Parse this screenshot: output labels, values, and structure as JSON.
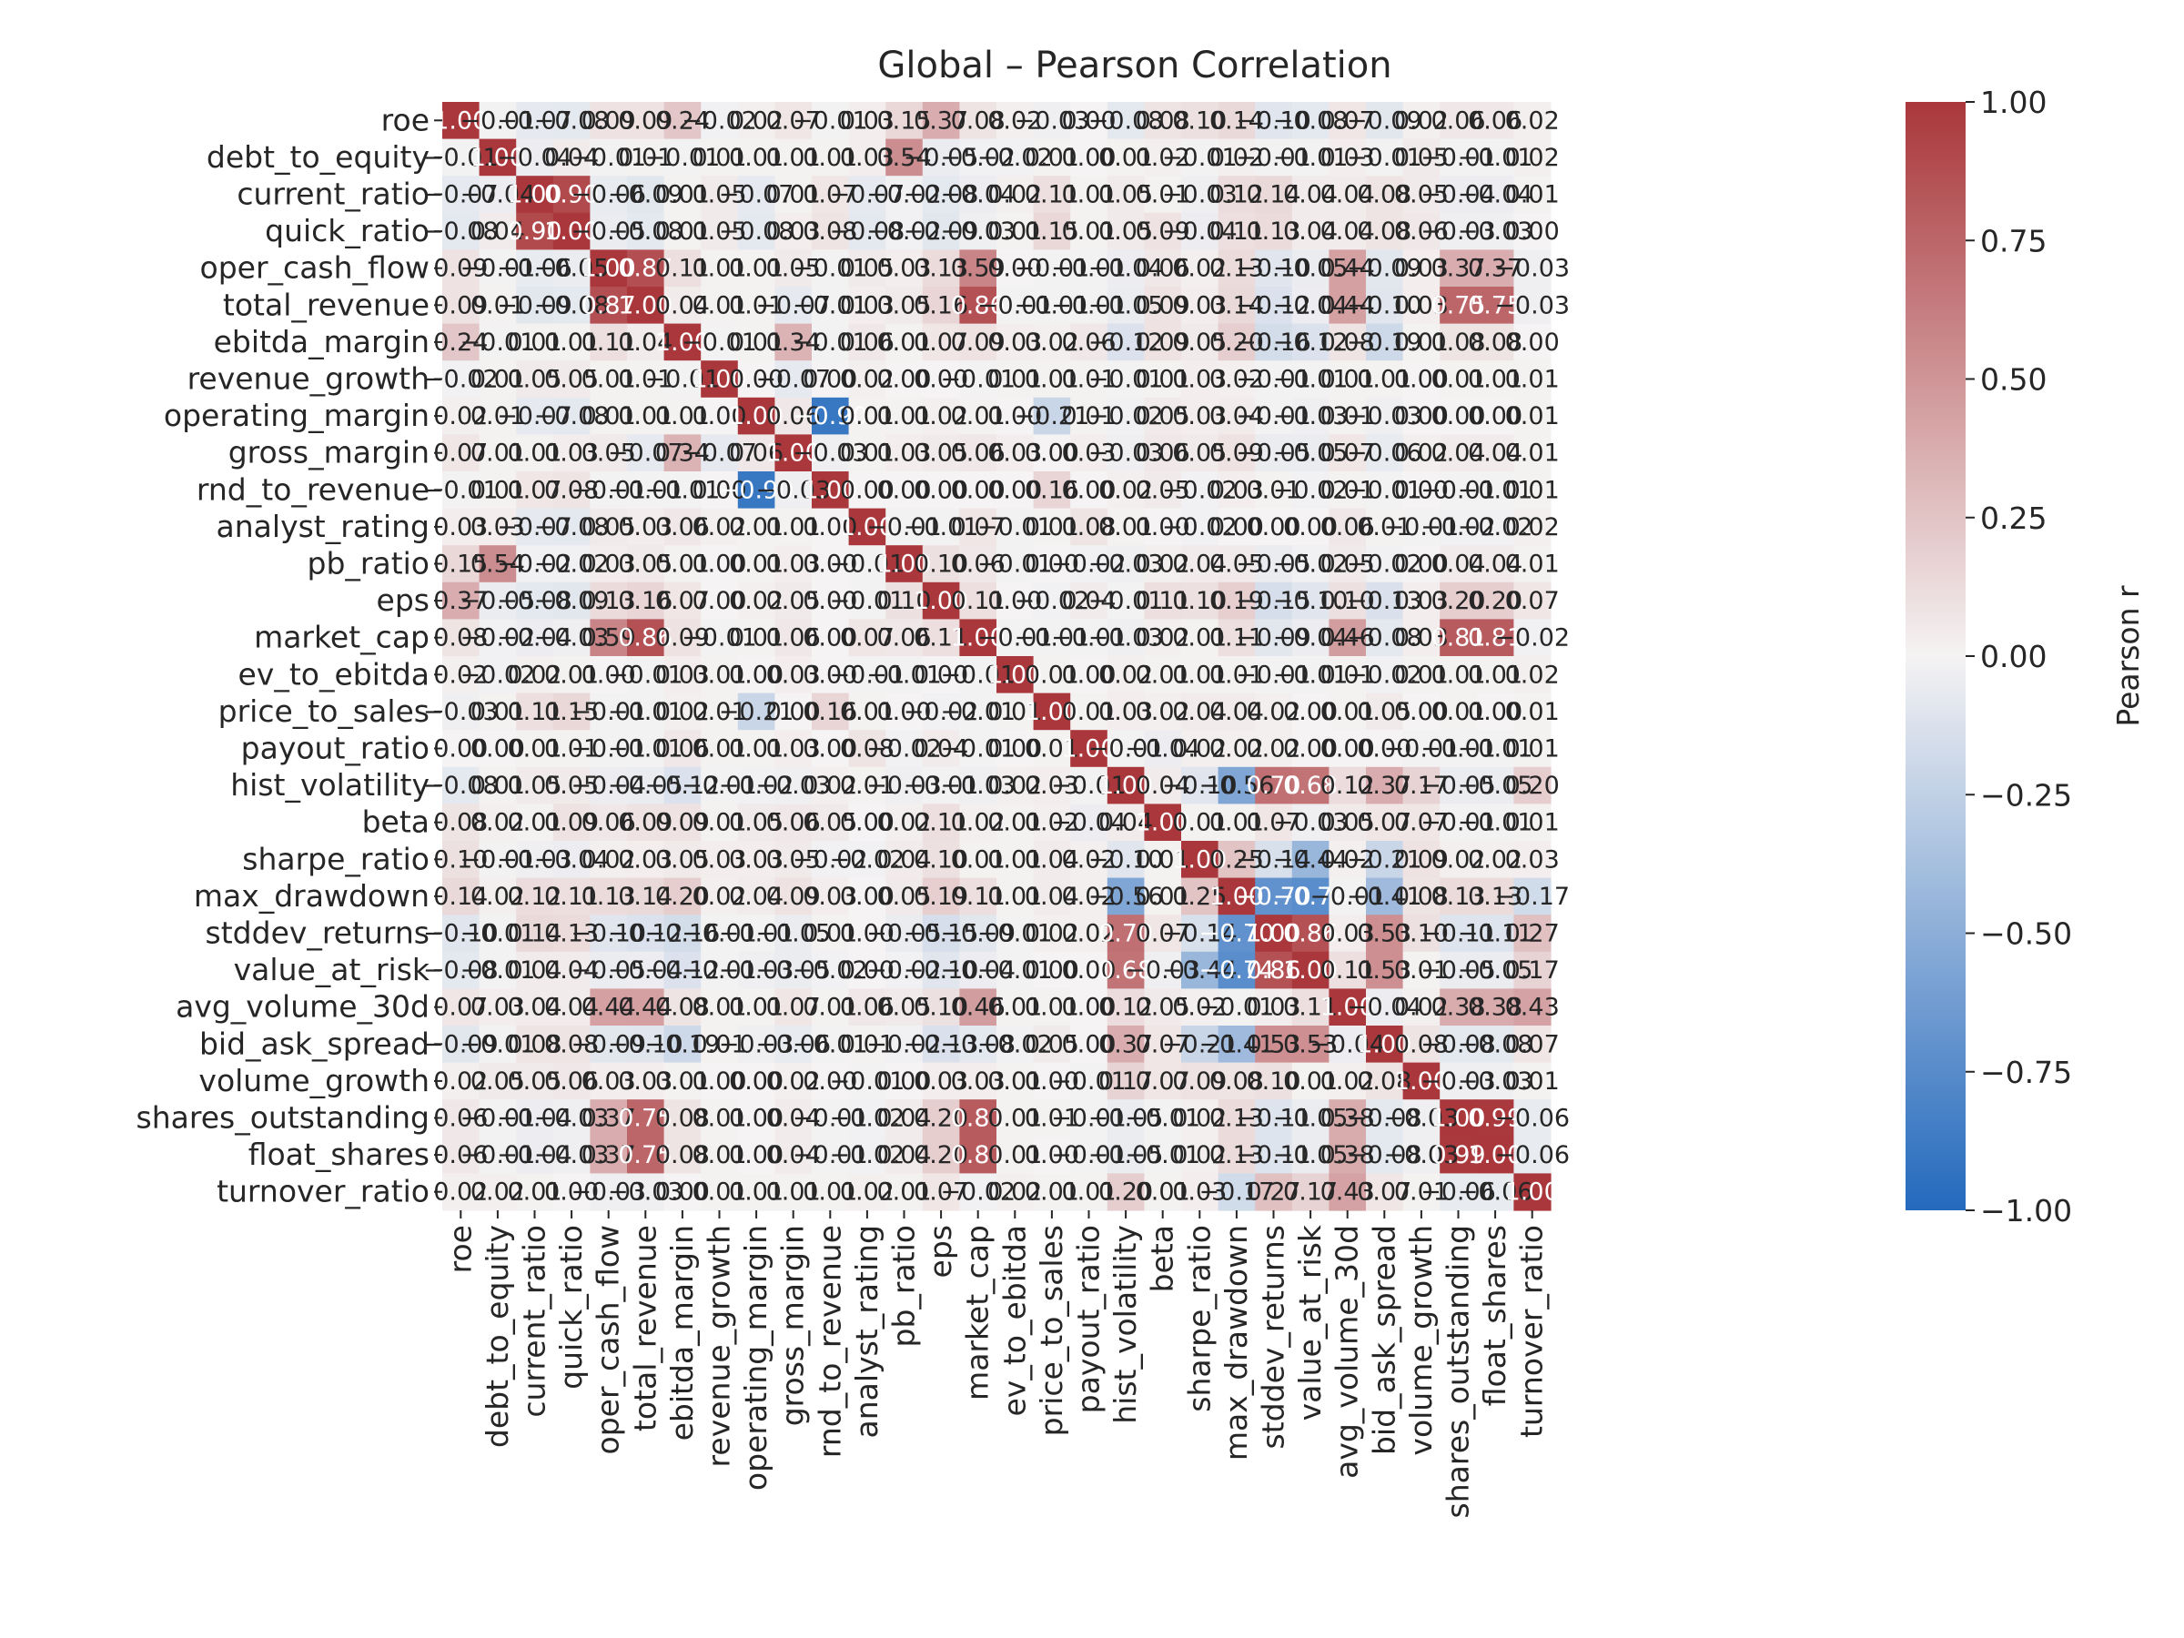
{
  "chart_data": {
    "type": "heatmap",
    "title": "Global – Pearson Correlation",
    "variables": [
      "roe",
      "debt_to_equity",
      "current_ratio",
      "quick_ratio",
      "oper_cash_flow",
      "total_revenue",
      "ebitda_margin",
      "revenue_growth",
      "operating_margin",
      "gross_margin",
      "rnd_to_revenue",
      "analyst_rating",
      "pb_ratio",
      "eps",
      "market_cap",
      "ev_to_ebitda",
      "price_to_sales",
      "payout_ratio",
      "hist_volatility",
      "beta",
      "sharpe_ratio",
      "max_drawdown",
      "stddev_returns",
      "value_at_risk",
      "avg_volume_30d",
      "bid_ask_spread",
      "volume_growth",
      "shares_outstanding",
      "float_shares",
      "turnover_ratio"
    ],
    "annotation_format": "0.00",
    "values": [
      [
        1.0,
        -0.01,
        -0.07,
        -0.08,
        0.09,
        0.09,
        0.24,
        -0.02,
        0.02,
        0.07,
        -0.01,
        0.03,
        0.15,
        0.37,
        0.08,
        0.02,
        -0.03,
        0.0,
        -0.08,
        0.08,
        0.1,
        0.14,
        -0.1,
        -0.08,
        0.07,
        -0.09,
        0.02,
        0.06,
        0.06,
        0.02
      ],
      [
        -0.01,
        1.0,
        -0.04,
        0.04,
        -0.01,
        0.01,
        -0.01,
        0.01,
        0.01,
        0.01,
        0.01,
        0.03,
        0.54,
        -0.05,
        -0.02,
        -0.02,
        0.01,
        0.0,
        0.01,
        0.02,
        -0.01,
        0.02,
        -0.01,
        -0.01,
        0.03,
        -0.01,
        0.05,
        -0.01,
        -0.01,
        0.02
      ],
      [
        -0.07,
        -0.04,
        1.0,
        0.9,
        -0.06,
        -0.09,
        0.01,
        0.05,
        -0.07,
        0.01,
        0.07,
        -0.07,
        -0.02,
        -0.08,
        -0.04,
        0.02,
        0.11,
        0.01,
        0.05,
        0.01,
        -0.03,
        0.12,
        0.14,
        0.04,
        0.04,
        0.08,
        0.05,
        -0.04,
        -0.04,
        0.01
      ],
      [
        -0.08,
        0.04,
        0.9,
        1.0,
        -0.05,
        -0.08,
        0.01,
        0.05,
        -0.08,
        0.03,
        0.08,
        -0.08,
        -0.02,
        -0.09,
        -0.03,
        0.01,
        0.15,
        0.01,
        0.05,
        0.09,
        -0.04,
        0.11,
        0.13,
        0.04,
        0.04,
        0.08,
        0.06,
        -0.03,
        -0.03,
        0.0
      ],
      [
        0.09,
        -0.01,
        -0.06,
        -0.05,
        1.0,
        0.87,
        0.11,
        0.01,
        0.01,
        0.05,
        -0.01,
        0.05,
        0.03,
        0.13,
        0.59,
        -0.0,
        -0.01,
        -0.01,
        -0.04,
        0.06,
        0.02,
        0.13,
        -0.1,
        -0.05,
        0.44,
        -0.09,
        0.03,
        0.37,
        0.37,
        -0.03
      ],
      [
        0.09,
        0.01,
        -0.09,
        -0.08,
        0.87,
        1.0,
        0.04,
        0.01,
        0.01,
        -0.07,
        -0.01,
        0.03,
        0.05,
        0.16,
        0.86,
        -0.01,
        -0.01,
        -0.01,
        -0.05,
        0.09,
        0.03,
        0.14,
        -0.12,
        -0.04,
        0.44,
        -0.1,
        0.03,
        0.75,
        0.75,
        -0.03
      ],
      [
        0.24,
        -0.01,
        0.01,
        0.01,
        0.11,
        0.04,
        1.0,
        -0.01,
        0.01,
        0.34,
        -0.01,
        0.06,
        0.01,
        0.07,
        0.09,
        0.03,
        0.02,
        0.06,
        -0.12,
        0.09,
        0.05,
        0.2,
        -0.16,
        -0.12,
        0.08,
        -0.19,
        0.01,
        0.08,
        0.08,
        0.0
      ],
      [
        -0.02,
        0.01,
        0.05,
        0.05,
        0.01,
        0.01,
        -0.01,
        1.0,
        0.0,
        -0.07,
        0.0,
        0.02,
        0.0,
        0.0,
        -0.01,
        0.01,
        0.01,
        0.01,
        -0.01,
        0.01,
        0.03,
        0.02,
        -0.01,
        -0.01,
        0.01,
        0.01,
        0.0,
        0.01,
        0.01,
        0.01
      ],
      [
        0.02,
        0.01,
        -0.07,
        -0.08,
        0.01,
        0.01,
        0.01,
        0.0,
        1.0,
        0.06,
        -0.9,
        0.01,
        0.01,
        0.02,
        0.01,
        0.0,
        -0.21,
        0.01,
        -0.02,
        0.05,
        0.03,
        0.04,
        -0.01,
        -0.03,
        0.01,
        -0.03,
        0.0,
        0.0,
        0.0,
        0.01
      ],
      [
        0.07,
        0.01,
        0.01,
        0.03,
        0.05,
        -0.07,
        0.34,
        -0.07,
        0.06,
        1.0,
        -0.03,
        0.01,
        0.03,
        0.05,
        0.06,
        0.03,
        0.0,
        0.03,
        -0.03,
        0.06,
        0.05,
        0.09,
        -0.05,
        -0.05,
        0.07,
        -0.06,
        0.02,
        0.04,
        0.04,
        0.01
      ],
      [
        -0.01,
        0.01,
        0.07,
        0.08,
        -0.01,
        -0.01,
        -0.01,
        0.0,
        -0.9,
        -0.03,
        1.0,
        -0.0,
        0.0,
        0.0,
        -0.0,
        0.0,
        0.16,
        0.0,
        0.02,
        0.05,
        -0.02,
        0.03,
        0.01,
        -0.02,
        0.01,
        -0.01,
        0.0,
        -0.01,
        -0.01,
        0.01
      ],
      [
        0.03,
        0.03,
        -0.07,
        -0.08,
        0.05,
        0.03,
        0.06,
        0.02,
        0.01,
        0.01,
        -0.0,
        1.0,
        -0.01,
        -0.01,
        0.07,
        -0.01,
        0.01,
        0.08,
        0.01,
        0.0,
        -0.02,
        0.0,
        -0.0,
        0.0,
        0.06,
        0.01,
        -0.01,
        -0.02,
        -0.02,
        0.02
      ],
      [
        0.15,
        0.54,
        -0.02,
        -0.02,
        0.03,
        0.05,
        0.01,
        0.0,
        0.01,
        0.03,
        0.0,
        -0.01,
        1.0,
        0.1,
        0.06,
        -0.01,
        -0.0,
        -0.02,
        -0.03,
        0.02,
        0.04,
        0.05,
        -0.05,
        -0.02,
        0.05,
        -0.02,
        -0.0,
        0.04,
        0.04,
        0.01
      ],
      [
        0.37,
        -0.05,
        -0.08,
        -0.09,
        0.13,
        0.16,
        0.07,
        0.0,
        0.02,
        0.05,
        0.0,
        -0.01,
        0.1,
        1.0,
        0.11,
        0.0,
        -0.02,
        0.04,
        -0.01,
        0.11,
        0.1,
        0.19,
        -0.15,
        -0.1,
        0.1,
        -0.13,
        0.03,
        0.2,
        0.2,
        0.07
      ],
      [
        0.08,
        -0.02,
        -0.04,
        -0.03,
        0.59,
        0.86,
        0.09,
        -0.01,
        0.01,
        0.06,
        -0.0,
        0.07,
        0.06,
        0.11,
        1.0,
        -0.01,
        -0.01,
        -0.01,
        -0.03,
        0.02,
        0.01,
        0.11,
        -0.09,
        -0.04,
        0.46,
        -0.08,
        0.03,
        0.81,
        0.81,
        -0.02
      ],
      [
        0.02,
        -0.02,
        0.02,
        0.01,
        -0.0,
        -0.01,
        0.03,
        0.01,
        0.0,
        0.03,
        0.0,
        -0.01,
        -0.01,
        0.0,
        -0.01,
        1.0,
        0.01,
        0.0,
        0.02,
        0.01,
        0.01,
        0.01,
        -0.01,
        -0.01,
        0.01,
        -0.02,
        0.01,
        0.01,
        0.01,
        0.02
      ],
      [
        -0.03,
        0.01,
        0.11,
        0.15,
        -0.01,
        -0.01,
        0.02,
        0.01,
        -0.21,
        0.0,
        0.16,
        0.01,
        -0.0,
        -0.02,
        -0.01,
        0.01,
        1.0,
        0.01,
        0.03,
        0.02,
        0.04,
        0.04,
        0.02,
        0.0,
        0.01,
        0.05,
        0.0,
        0.01,
        -0.0,
        0.01
      ],
      [
        0.0,
        0.0,
        0.01,
        0.01,
        -0.01,
        -0.01,
        0.06,
        0.01,
        0.01,
        0.03,
        0.0,
        0.08,
        -0.02,
        0.04,
        -0.01,
        0.0,
        0.01,
        1.0,
        -0.01,
        -0.04,
        0.02,
        0.02,
        0.02,
        0.0,
        -0.0,
        -0.0,
        -0.01,
        -0.01,
        -0.01,
        0.01
      ],
      [
        -0.08,
        0.01,
        0.05,
        0.05,
        -0.04,
        -0.05,
        -0.12,
        -0.01,
        -0.02,
        -0.03,
        0.02,
        0.01,
        -0.03,
        -0.01,
        -0.03,
        0.02,
        0.03,
        -0.01,
        1.0,
        0.04,
        -0.1,
        -0.56,
        0.7,
        0.68,
        0.12,
        0.37,
        0.17,
        -0.05,
        -0.05,
        0.2
      ],
      [
        0.08,
        0.02,
        0.01,
        0.09,
        0.06,
        0.09,
        0.09,
        0.01,
        0.05,
        0.06,
        0.05,
        0.0,
        0.02,
        0.11,
        0.02,
        0.01,
        0.02,
        -0.04,
        0.04,
        1.0,
        0.01,
        0.01,
        0.07,
        -0.03,
        0.05,
        0.07,
        0.07,
        -0.01,
        -0.01,
        0.01
      ],
      [
        0.1,
        -0.01,
        -0.03,
        -0.04,
        0.02,
        0.03,
        0.05,
        0.03,
        0.03,
        0.05,
        -0.02,
        -0.02,
        0.04,
        0.1,
        0.01,
        0.01,
        0.04,
        0.02,
        -0.1,
        0.01,
        1.0,
        0.25,
        -0.14,
        -0.44,
        0.02,
        -0.21,
        0.09,
        0.02,
        0.02,
        0.03
      ],
      [
        0.14,
        0.02,
        0.12,
        0.11,
        0.13,
        0.14,
        0.2,
        0.02,
        0.04,
        0.09,
        0.03,
        0.0,
        0.05,
        0.19,
        0.11,
        0.01,
        0.04,
        0.02,
        -0.56,
        0.01,
        0.25,
        1.0,
        -0.7,
        -0.74,
        -0.01,
        -0.41,
        0.08,
        0.13,
        0.13,
        -0.17
      ],
      [
        -0.1,
        -0.01,
        0.14,
        0.13,
        -0.1,
        -0.12,
        -0.16,
        -0.01,
        -0.01,
        -0.05,
        0.01,
        -0.0,
        -0.05,
        -0.15,
        -0.09,
        -0.01,
        0.02,
        0.02,
        0.7,
        0.07,
        -0.14,
        -0.7,
        1.0,
        0.86,
        0.03,
        0.53,
        0.1,
        -0.11,
        -0.11,
        0.27
      ],
      [
        -0.08,
        -0.01,
        0.04,
        0.04,
        -0.05,
        -0.04,
        -0.12,
        -0.01,
        -0.03,
        -0.05,
        -0.02,
        0.0,
        -0.02,
        -0.1,
        -0.04,
        -0.01,
        0.0,
        0.0,
        0.68,
        -0.03,
        -0.44,
        -0.74,
        0.86,
        1.0,
        0.11,
        0.53,
        0.01,
        -0.05,
        -0.05,
        0.17
      ],
      [
        0.07,
        0.03,
        0.04,
        0.04,
        0.44,
        0.44,
        0.08,
        0.01,
        0.01,
        0.07,
        0.01,
        0.06,
        0.05,
        0.1,
        0.46,
        0.01,
        0.01,
        -0.0,
        0.12,
        0.05,
        0.02,
        -0.01,
        0.03,
        0.11,
        1.0,
        -0.04,
        0.02,
        0.38,
        0.38,
        0.43
      ],
      [
        -0.09,
        -0.01,
        0.08,
        0.08,
        -0.09,
        -0.1,
        -0.19,
        0.01,
        -0.03,
        -0.06,
        -0.01,
        0.01,
        -0.02,
        -0.13,
        -0.08,
        -0.02,
        0.05,
        -0.0,
        0.37,
        0.07,
        -0.21,
        -0.41,
        0.53,
        0.53,
        -0.04,
        1.0,
        0.08,
        -0.08,
        -0.08,
        0.07
      ],
      [
        0.02,
        0.05,
        0.05,
        0.06,
        0.03,
        0.03,
        0.01,
        0.0,
        0.0,
        0.02,
        0.0,
        -0.01,
        -0.0,
        0.03,
        0.03,
        0.01,
        0.0,
        -0.01,
        0.17,
        0.07,
        0.09,
        0.08,
        0.1,
        0.01,
        0.02,
        0.08,
        1.0,
        -0.03,
        -0.03,
        0.01
      ],
      [
        0.06,
        -0.01,
        -0.04,
        -0.03,
        0.37,
        0.75,
        0.08,
        0.01,
        0.0,
        0.04,
        -0.01,
        -0.02,
        0.04,
        0.2,
        0.81,
        0.01,
        0.01,
        -0.01,
        -0.05,
        -0.01,
        0.02,
        0.13,
        -0.11,
        -0.05,
        0.38,
        -0.08,
        -0.03,
        1.0,
        0.99,
        -0.06
      ],
      [
        0.06,
        -0.01,
        -0.04,
        -0.03,
        0.37,
        0.75,
        0.08,
        0.01,
        0.0,
        0.04,
        -0.01,
        -0.02,
        0.04,
        0.2,
        0.81,
        0.01,
        -0.0,
        -0.01,
        -0.05,
        -0.01,
        0.02,
        0.13,
        -0.11,
        -0.05,
        0.38,
        -0.08,
        -0.03,
        0.99,
        1.0,
        -0.06
      ],
      [
        0.02,
        0.02,
        0.01,
        0.0,
        -0.03,
        -0.03,
        0.0,
        0.01,
        0.01,
        0.01,
        0.01,
        0.02,
        0.01,
        0.07,
        -0.02,
        0.02,
        0.01,
        0.01,
        0.2,
        0.01,
        0.03,
        -0.17,
        0.27,
        0.17,
        0.43,
        0.07,
        0.01,
        -0.06,
        -0.06,
        1.0
      ]
    ],
    "colorbar": {
      "label": "Pearson r",
      "vmin": -1.0,
      "vmax": 1.0,
      "ticks": [
        "1.00",
        "0.75",
        "0.50",
        "0.25",
        "0.00",
        "−0.25",
        "−0.50",
        "−0.75",
        "−1.00"
      ],
      "tick_values": [
        1.0,
        0.75,
        0.5,
        0.25,
        0.0,
        -0.25,
        -0.5,
        -0.75,
        -1.0
      ],
      "colormap": "vlag",
      "color_low": "#2369bd",
      "color_mid": "#f5f3f3",
      "color_high": "#a9373b"
    }
  }
}
